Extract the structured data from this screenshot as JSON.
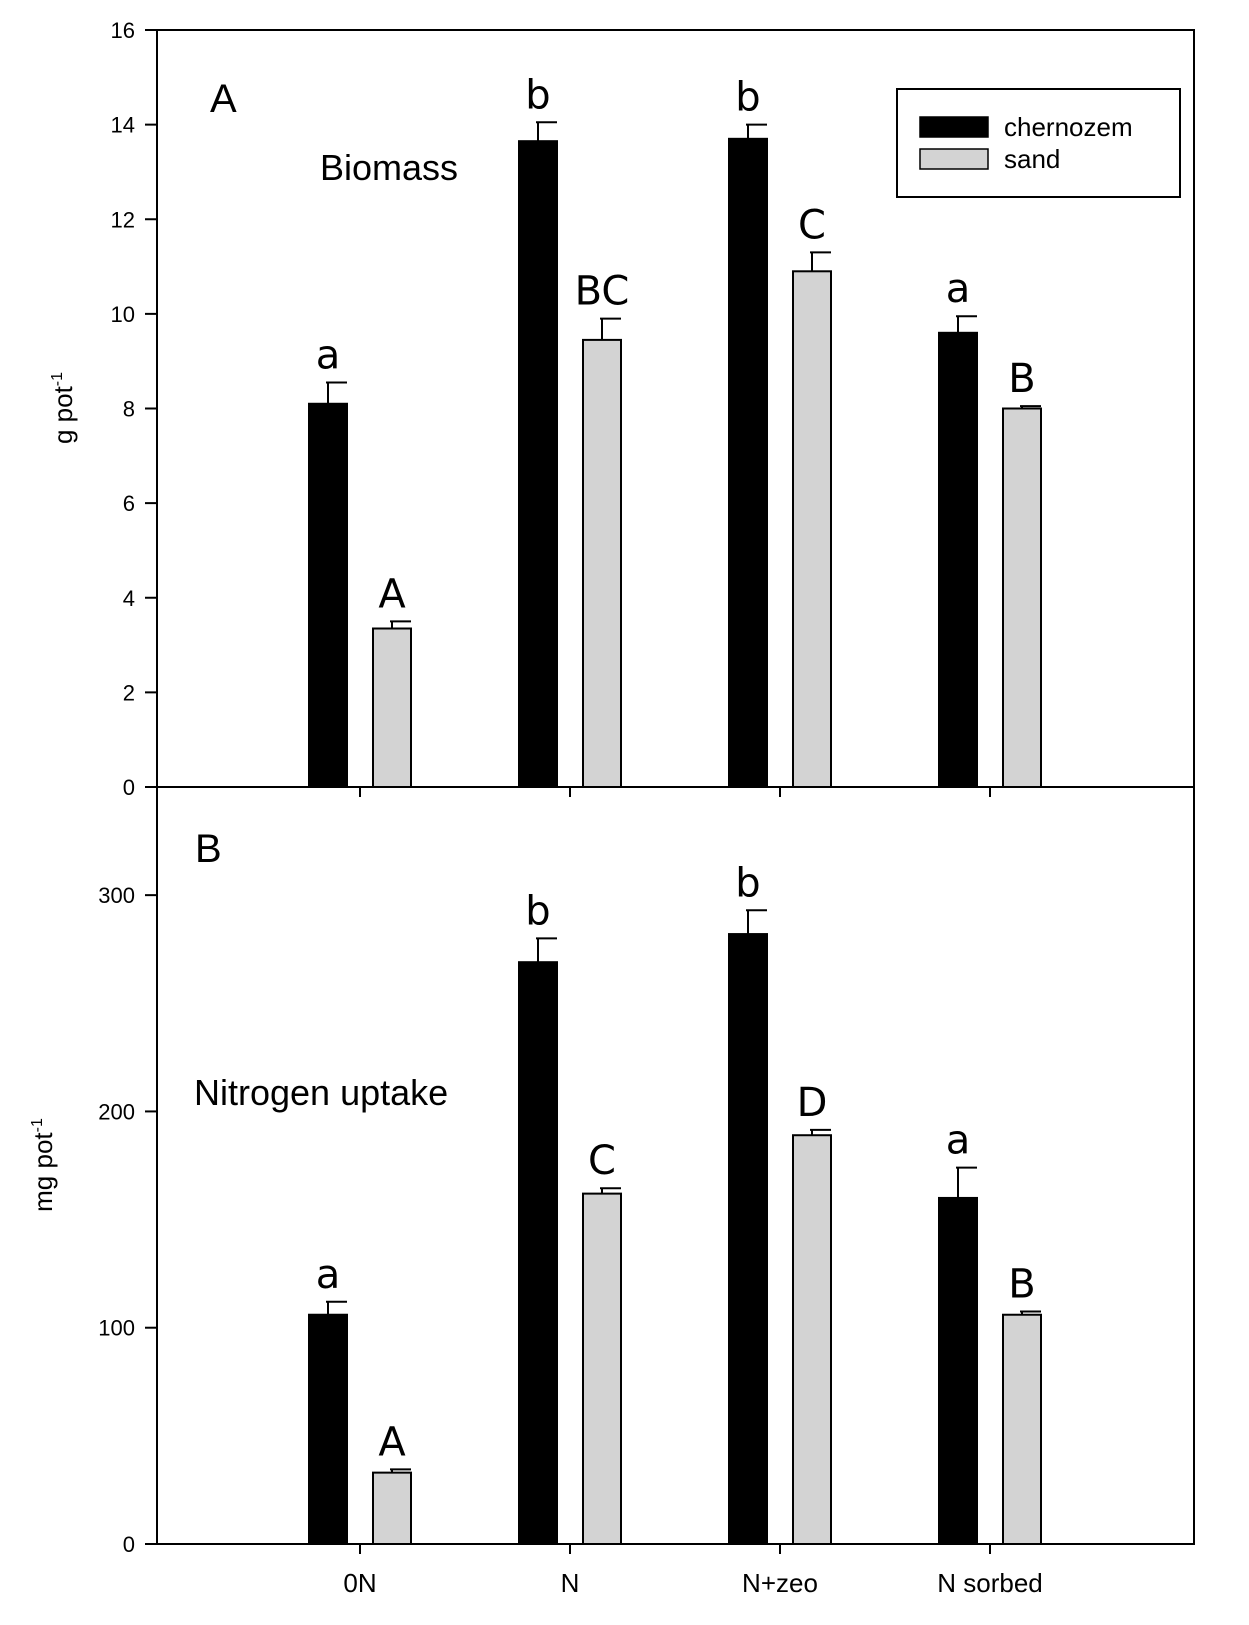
{
  "chart_data": [
    {
      "panel": "A",
      "type": "bar",
      "title": "Biomass",
      "ylabel": "g pot",
      "ylabel_superscript": "-1",
      "ylim": [
        0,
        16
      ],
      "yticks": [
        0,
        2,
        4,
        6,
        8,
        10,
        12,
        14,
        16
      ],
      "categories": [
        "0N",
        "N",
        "N+zeo",
        "N sorbed"
      ],
      "series": [
        {
          "name": "chernozem",
          "color": "#000000",
          "values": [
            8.1,
            13.65,
            13.7,
            9.6
          ],
          "errors": [
            0.45,
            0.4,
            0.3,
            0.35
          ],
          "letters": [
            "a",
            "b",
            "b",
            "a"
          ]
        },
        {
          "name": "sand",
          "color": "#d3d3d3",
          "values": [
            3.35,
            9.45,
            10.9,
            8.0
          ],
          "errors": [
            0.15,
            0.45,
            0.4,
            0.05
          ],
          "letters": [
            "A",
            "BC",
            "C",
            "B"
          ]
        }
      ],
      "legend": {
        "position": "top-right",
        "entries": [
          "chernozem",
          "sand"
        ]
      }
    },
    {
      "panel": "B",
      "type": "bar",
      "title": "Nitrogen uptake",
      "ylabel": "mg pot",
      "ylabel_superscript": "-1",
      "ylim": [
        0,
        350
      ],
      "yticks": [
        0,
        100,
        200,
        300
      ],
      "categories": [
        "0N",
        "N",
        "N+zeo",
        "N sorbed"
      ],
      "series": [
        {
          "name": "chernozem",
          "color": "#000000",
          "values": [
            106,
            269,
            282,
            160
          ],
          "errors": [
            6,
            11,
            11,
            14
          ],
          "letters": [
            "a",
            "b",
            "b",
            "a"
          ]
        },
        {
          "name": "sand",
          "color": "#d3d3d3",
          "values": [
            33,
            162,
            189,
            106
          ],
          "errors": [
            1.5,
            2.5,
            2.5,
            1.5
          ],
          "letters": [
            "A",
            "C",
            "D",
            "B"
          ]
        }
      ]
    }
  ]
}
